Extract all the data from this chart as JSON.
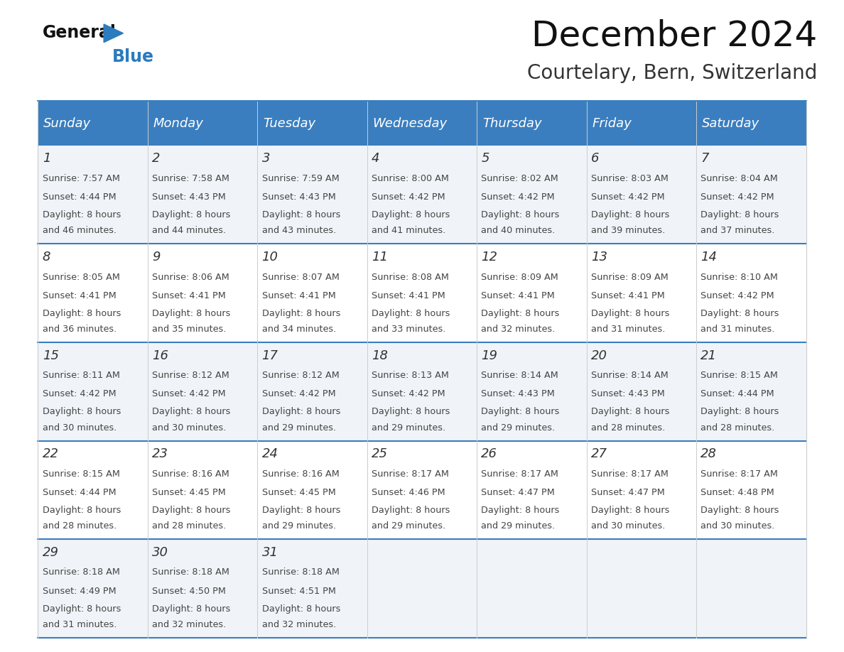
{
  "title": "December 2024",
  "subtitle": "Courtelary, Bern, Switzerland",
  "days_of_week": [
    "Sunday",
    "Monday",
    "Tuesday",
    "Wednesday",
    "Thursday",
    "Friday",
    "Saturday"
  ],
  "header_bg_color": "#3a7ebf",
  "header_text_color": "#ffffff",
  "row_bg_even": "#f0f4f8",
  "row_bg_odd": "#ffffff",
  "day_num_color": "#333333",
  "text_color": "#444444",
  "grid_color": "#cccccc",
  "separator_color": "#3a7ebf",
  "background_color": "#ffffff",
  "calendar": [
    [
      {
        "day": 1,
        "sunrise": "7:57 AM",
        "sunset": "4:44 PM",
        "daylight": "8 hours and 46 minutes."
      },
      {
        "day": 2,
        "sunrise": "7:58 AM",
        "sunset": "4:43 PM",
        "daylight": "8 hours and 44 minutes."
      },
      {
        "day": 3,
        "sunrise": "7:59 AM",
        "sunset": "4:43 PM",
        "daylight": "8 hours and 43 minutes."
      },
      {
        "day": 4,
        "sunrise": "8:00 AM",
        "sunset": "4:42 PM",
        "daylight": "8 hours and 41 minutes."
      },
      {
        "day": 5,
        "sunrise": "8:02 AM",
        "sunset": "4:42 PM",
        "daylight": "8 hours and 40 minutes."
      },
      {
        "day": 6,
        "sunrise": "8:03 AM",
        "sunset": "4:42 PM",
        "daylight": "8 hours and 39 minutes."
      },
      {
        "day": 7,
        "sunrise": "8:04 AM",
        "sunset": "4:42 PM",
        "daylight": "8 hours and 37 minutes."
      }
    ],
    [
      {
        "day": 8,
        "sunrise": "8:05 AM",
        "sunset": "4:41 PM",
        "daylight": "8 hours and 36 minutes."
      },
      {
        "day": 9,
        "sunrise": "8:06 AM",
        "sunset": "4:41 PM",
        "daylight": "8 hours and 35 minutes."
      },
      {
        "day": 10,
        "sunrise": "8:07 AM",
        "sunset": "4:41 PM",
        "daylight": "8 hours and 34 minutes."
      },
      {
        "day": 11,
        "sunrise": "8:08 AM",
        "sunset": "4:41 PM",
        "daylight": "8 hours and 33 minutes."
      },
      {
        "day": 12,
        "sunrise": "8:09 AM",
        "sunset": "4:41 PM",
        "daylight": "8 hours and 32 minutes."
      },
      {
        "day": 13,
        "sunrise": "8:09 AM",
        "sunset": "4:41 PM",
        "daylight": "8 hours and 31 minutes."
      },
      {
        "day": 14,
        "sunrise": "8:10 AM",
        "sunset": "4:42 PM",
        "daylight": "8 hours and 31 minutes."
      }
    ],
    [
      {
        "day": 15,
        "sunrise": "8:11 AM",
        "sunset": "4:42 PM",
        "daylight": "8 hours and 30 minutes."
      },
      {
        "day": 16,
        "sunrise": "8:12 AM",
        "sunset": "4:42 PM",
        "daylight": "8 hours and 30 minutes."
      },
      {
        "day": 17,
        "sunrise": "8:12 AM",
        "sunset": "4:42 PM",
        "daylight": "8 hours and 29 minutes."
      },
      {
        "day": 18,
        "sunrise": "8:13 AM",
        "sunset": "4:42 PM",
        "daylight": "8 hours and 29 minutes."
      },
      {
        "day": 19,
        "sunrise": "8:14 AM",
        "sunset": "4:43 PM",
        "daylight": "8 hours and 29 minutes."
      },
      {
        "day": 20,
        "sunrise": "8:14 AM",
        "sunset": "4:43 PM",
        "daylight": "8 hours and 28 minutes."
      },
      {
        "day": 21,
        "sunrise": "8:15 AM",
        "sunset": "4:44 PM",
        "daylight": "8 hours and 28 minutes."
      }
    ],
    [
      {
        "day": 22,
        "sunrise": "8:15 AM",
        "sunset": "4:44 PM",
        "daylight": "8 hours and 28 minutes."
      },
      {
        "day": 23,
        "sunrise": "8:16 AM",
        "sunset": "4:45 PM",
        "daylight": "8 hours and 28 minutes."
      },
      {
        "day": 24,
        "sunrise": "8:16 AM",
        "sunset": "4:45 PM",
        "daylight": "8 hours and 29 minutes."
      },
      {
        "day": 25,
        "sunrise": "8:17 AM",
        "sunset": "4:46 PM",
        "daylight": "8 hours and 29 minutes."
      },
      {
        "day": 26,
        "sunrise": "8:17 AM",
        "sunset": "4:47 PM",
        "daylight": "8 hours and 29 minutes."
      },
      {
        "day": 27,
        "sunrise": "8:17 AM",
        "sunset": "4:47 PM",
        "daylight": "8 hours and 30 minutes."
      },
      {
        "day": 28,
        "sunrise": "8:17 AM",
        "sunset": "4:48 PM",
        "daylight": "8 hours and 30 minutes."
      }
    ],
    [
      {
        "day": 29,
        "sunrise": "8:18 AM",
        "sunset": "4:49 PM",
        "daylight": "8 hours and 31 minutes."
      },
      {
        "day": 30,
        "sunrise": "8:18 AM",
        "sunset": "4:50 PM",
        "daylight": "8 hours and 32 minutes."
      },
      {
        "day": 31,
        "sunrise": "8:18 AM",
        "sunset": "4:51 PM",
        "daylight": "8 hours and 32 minutes."
      },
      null,
      null,
      null,
      null
    ]
  ]
}
